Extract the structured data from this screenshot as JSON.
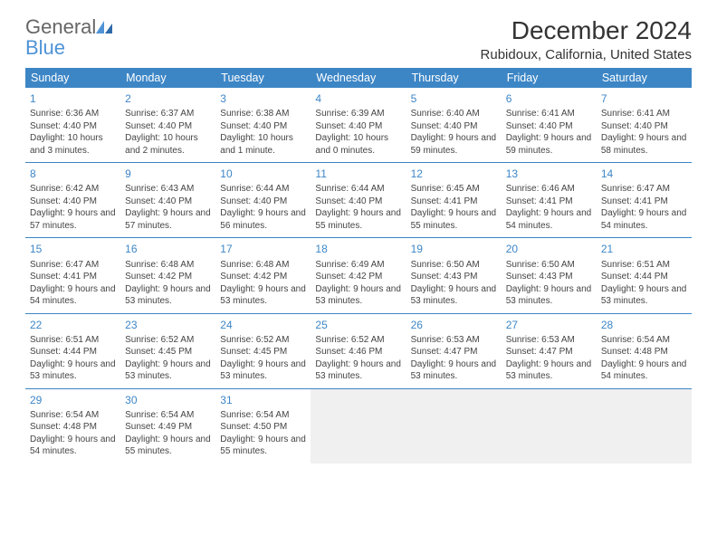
{
  "brand": {
    "word1": "General",
    "word2": "Blue"
  },
  "title": "December 2024",
  "location": "Rubidoux, California, United States",
  "colors": {
    "header_bg": "#3d86c6",
    "header_fg": "#ffffff",
    "accent": "#3d86c6",
    "brand_blue": "#4f93d6",
    "brand_gray": "#666666"
  },
  "typography": {
    "title_fontsize": 28,
    "location_fontsize": 15,
    "dayheader_fontsize": 12.5,
    "cell_fontsize": 10
  },
  "layout": {
    "columns": 7,
    "rows": 5,
    "first_weekday": "Sunday"
  },
  "day_headers": [
    "Sunday",
    "Monday",
    "Tuesday",
    "Wednesday",
    "Thursday",
    "Friday",
    "Saturday"
  ],
  "days": [
    {
      "n": 1,
      "sr": "6:36 AM",
      "ss": "4:40 PM",
      "dl": "10 hours and 3 minutes."
    },
    {
      "n": 2,
      "sr": "6:37 AM",
      "ss": "4:40 PM",
      "dl": "10 hours and 2 minutes."
    },
    {
      "n": 3,
      "sr": "6:38 AM",
      "ss": "4:40 PM",
      "dl": "10 hours and 1 minute."
    },
    {
      "n": 4,
      "sr": "6:39 AM",
      "ss": "4:40 PM",
      "dl": "10 hours and 0 minutes."
    },
    {
      "n": 5,
      "sr": "6:40 AM",
      "ss": "4:40 PM",
      "dl": "9 hours and 59 minutes."
    },
    {
      "n": 6,
      "sr": "6:41 AM",
      "ss": "4:40 PM",
      "dl": "9 hours and 59 minutes."
    },
    {
      "n": 7,
      "sr": "6:41 AM",
      "ss": "4:40 PM",
      "dl": "9 hours and 58 minutes."
    },
    {
      "n": 8,
      "sr": "6:42 AM",
      "ss": "4:40 PM",
      "dl": "9 hours and 57 minutes."
    },
    {
      "n": 9,
      "sr": "6:43 AM",
      "ss": "4:40 PM",
      "dl": "9 hours and 57 minutes."
    },
    {
      "n": 10,
      "sr": "6:44 AM",
      "ss": "4:40 PM",
      "dl": "9 hours and 56 minutes."
    },
    {
      "n": 11,
      "sr": "6:44 AM",
      "ss": "4:40 PM",
      "dl": "9 hours and 55 minutes."
    },
    {
      "n": 12,
      "sr": "6:45 AM",
      "ss": "4:41 PM",
      "dl": "9 hours and 55 minutes."
    },
    {
      "n": 13,
      "sr": "6:46 AM",
      "ss": "4:41 PM",
      "dl": "9 hours and 54 minutes."
    },
    {
      "n": 14,
      "sr": "6:47 AM",
      "ss": "4:41 PM",
      "dl": "9 hours and 54 minutes."
    },
    {
      "n": 15,
      "sr": "6:47 AM",
      "ss": "4:41 PM",
      "dl": "9 hours and 54 minutes."
    },
    {
      "n": 16,
      "sr": "6:48 AM",
      "ss": "4:42 PM",
      "dl": "9 hours and 53 minutes."
    },
    {
      "n": 17,
      "sr": "6:48 AM",
      "ss": "4:42 PM",
      "dl": "9 hours and 53 minutes."
    },
    {
      "n": 18,
      "sr": "6:49 AM",
      "ss": "4:42 PM",
      "dl": "9 hours and 53 minutes."
    },
    {
      "n": 19,
      "sr": "6:50 AM",
      "ss": "4:43 PM",
      "dl": "9 hours and 53 minutes."
    },
    {
      "n": 20,
      "sr": "6:50 AM",
      "ss": "4:43 PM",
      "dl": "9 hours and 53 minutes."
    },
    {
      "n": 21,
      "sr": "6:51 AM",
      "ss": "4:44 PM",
      "dl": "9 hours and 53 minutes."
    },
    {
      "n": 22,
      "sr": "6:51 AM",
      "ss": "4:44 PM",
      "dl": "9 hours and 53 minutes."
    },
    {
      "n": 23,
      "sr": "6:52 AM",
      "ss": "4:45 PM",
      "dl": "9 hours and 53 minutes."
    },
    {
      "n": 24,
      "sr": "6:52 AM",
      "ss": "4:45 PM",
      "dl": "9 hours and 53 minutes."
    },
    {
      "n": 25,
      "sr": "6:52 AM",
      "ss": "4:46 PM",
      "dl": "9 hours and 53 minutes."
    },
    {
      "n": 26,
      "sr": "6:53 AM",
      "ss": "4:47 PM",
      "dl": "9 hours and 53 minutes."
    },
    {
      "n": 27,
      "sr": "6:53 AM",
      "ss": "4:47 PM",
      "dl": "9 hours and 53 minutes."
    },
    {
      "n": 28,
      "sr": "6:54 AM",
      "ss": "4:48 PM",
      "dl": "9 hours and 54 minutes."
    },
    {
      "n": 29,
      "sr": "6:54 AM",
      "ss": "4:48 PM",
      "dl": "9 hours and 54 minutes."
    },
    {
      "n": 30,
      "sr": "6:54 AM",
      "ss": "4:49 PM",
      "dl": "9 hours and 55 minutes."
    },
    {
      "n": 31,
      "sr": "6:54 AM",
      "ss": "4:50 PM",
      "dl": "9 hours and 55 minutes."
    }
  ],
  "labels": {
    "sunrise": "Sunrise:",
    "sunset": "Sunset:",
    "daylight": "Daylight:"
  }
}
